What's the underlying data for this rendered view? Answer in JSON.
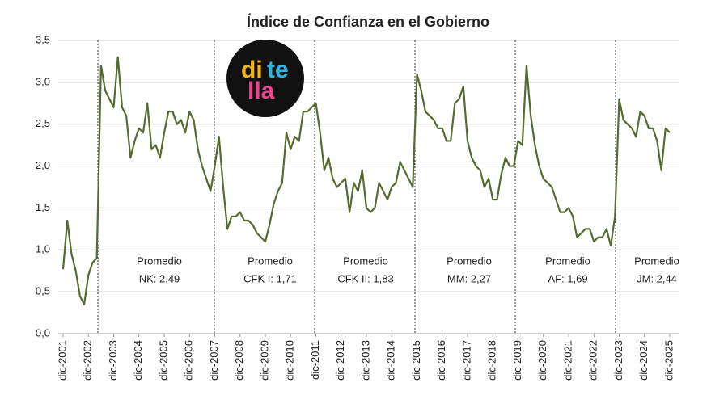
{
  "chart_data": {
    "type": "line",
    "title": "Índice de Confianza en el Gobierno",
    "categories": [
      "dic-2001",
      null,
      null,
      null,
      null,
      null,
      "dic-2002",
      null,
      null,
      null,
      null,
      null,
      "dic-2003",
      null,
      null,
      null,
      null,
      null,
      "dic-2004",
      null,
      null,
      null,
      null,
      null,
      "dic-2005",
      null,
      null,
      null,
      null,
      null,
      "dic-2006",
      null,
      null,
      null,
      null,
      null,
      "dic-2007",
      null,
      null,
      null,
      null,
      null,
      "dic-2008",
      null,
      null,
      null,
      null,
      null,
      "dic-2009",
      null,
      null,
      null,
      null,
      null,
      "dic-2010",
      null,
      null,
      null,
      null,
      null,
      "dic-2011",
      null,
      null,
      null,
      null,
      null,
      "dic-2012",
      null,
      null,
      null,
      null,
      null,
      "dic-2013",
      null,
      null,
      null,
      null,
      null,
      "dic-2014",
      null,
      null,
      null,
      null,
      null,
      "dic-2015",
      null,
      null,
      null,
      null,
      null,
      "dic-2016",
      null,
      null,
      null,
      null,
      null,
      "dic-2017",
      null,
      null,
      null,
      null,
      null,
      "dic-2018",
      null,
      null,
      null,
      null,
      null,
      "dic-2019",
      null,
      null,
      null,
      null,
      null,
      "dic-2020",
      null,
      null,
      null,
      null,
      null,
      "dic-2021",
      null,
      null,
      null,
      null,
      null,
      "dic-2022",
      null,
      null,
      null,
      null,
      null,
      "dic-2023",
      null,
      null,
      null,
      null,
      null,
      "dic-2024",
      null,
      null,
      null,
      null,
      null,
      "dic-2025"
    ],
    "values": [
      0.77,
      1.35,
      0.95,
      0.75,
      0.45,
      0.35,
      0.7,
      0.85,
      0.9,
      3.2,
      2.9,
      2.8,
      2.7,
      3.3,
      2.7,
      2.6,
      2.1,
      2.3,
      2.45,
      2.4,
      2.75,
      2.2,
      2.25,
      2.1,
      2.4,
      2.65,
      2.65,
      2.5,
      2.55,
      2.4,
      2.65,
      2.55,
      2.2,
      2.0,
      1.85,
      1.7,
      2.0,
      2.35,
      1.75,
      1.25,
      1.4,
      1.4,
      1.45,
      1.35,
      1.35,
      1.3,
      1.2,
      1.15,
      1.1,
      1.3,
      1.55,
      1.7,
      1.8,
      2.4,
      2.2,
      2.35,
      2.3,
      2.65,
      2.65,
      2.7,
      2.75,
      2.4,
      1.95,
      2.1,
      1.85,
      1.75,
      1.8,
      1.85,
      1.45,
      1.8,
      1.7,
      1.95,
      1.5,
      1.45,
      1.5,
      1.8,
      1.7,
      1.6,
      1.75,
      1.8,
      2.05,
      1.95,
      1.85,
      1.75,
      3.1,
      2.9,
      2.65,
      2.6,
      2.55,
      2.45,
      2.45,
      2.3,
      2.3,
      2.75,
      2.8,
      2.95,
      2.3,
      2.1,
      2.0,
      1.95,
      1.75,
      1.85,
      1.6,
      1.6,
      1.9,
      2.1,
      2.0,
      2.0,
      2.3,
      2.25,
      3.2,
      2.6,
      2.25,
      2.0,
      1.85,
      1.8,
      1.75,
      1.6,
      1.45,
      1.45,
      1.5,
      1.4,
      1.15,
      1.2,
      1.25,
      1.25,
      1.1,
      1.15,
      1.15,
      1.25,
      1.05,
      1.4,
      2.8,
      2.55,
      2.5,
      2.45,
      2.35,
      2.65,
      2.6,
      2.45,
      2.45,
      2.3,
      1.95,
      2.45,
      2.4
    ],
    "color": "#556b2f",
    "ylim": [
      0,
      3.5
    ],
    "yticks": [
      {
        "value": 0,
        "label": "0,0"
      },
      {
        "value": 0.5,
        "label": "0,5"
      },
      {
        "value": 1,
        "label": "1,0"
      },
      {
        "value": 1.5,
        "label": "1,5"
      },
      {
        "value": 2,
        "label": "2,0"
      },
      {
        "value": 2.5,
        "label": "2,5"
      },
      {
        "value": 3,
        "label": "3,0"
      },
      {
        "value": 3.5,
        "label": "3,5"
      }
    ],
    "grid": true,
    "annotations": [
      {
        "title": "Promedio",
        "text": "NK: 2,49"
      },
      {
        "title": "Promedio",
        "text": "CFK I: 1,71"
      },
      {
        "title": "Promedio",
        "text": "CFK II: 1,83"
      },
      {
        "title": "Promedio",
        "text": "MM: 2,27"
      },
      {
        "title": "Promedio",
        "text": "AF: 1,69"
      },
      {
        "title": "Promedio",
        "text": "JM: 2,44"
      }
    ],
    "logo": [
      "di",
      "te",
      "lla"
    ]
  }
}
